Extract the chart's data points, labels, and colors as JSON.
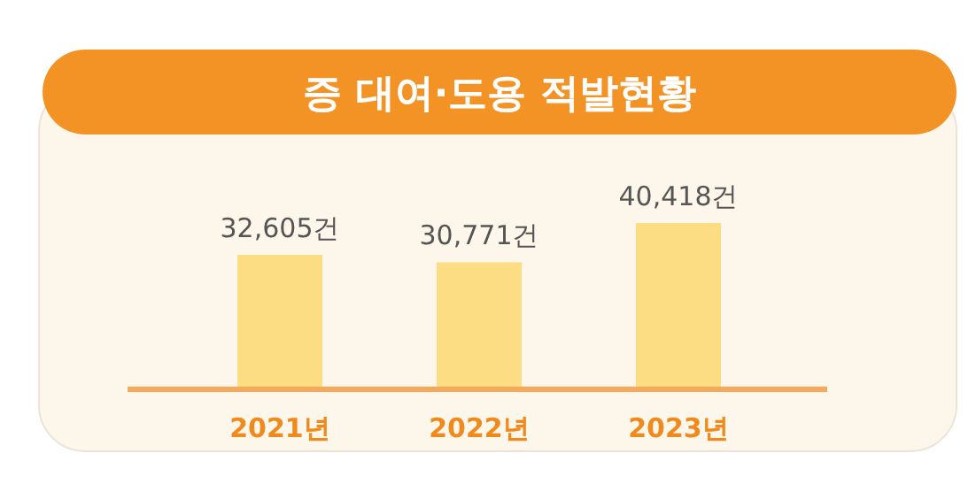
{
  "chart_data": {
    "type": "bar",
    "title": "증 대여·도용 적발현황",
    "categories": [
      "2021년",
      "2022년",
      "2023년"
    ],
    "values": [
      32605,
      30771,
      40418
    ],
    "value_labels": [
      "32,605건",
      "30,771건",
      "40,418건"
    ],
    "color": "#fcdd84"
  }
}
